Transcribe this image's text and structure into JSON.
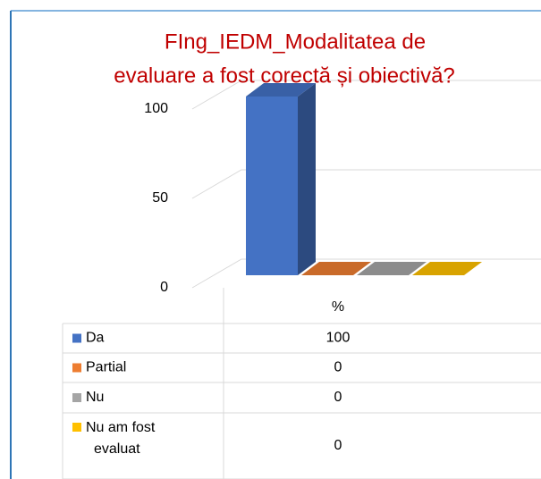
{
  "chart_data": {
    "type": "bar3d",
    "title": [
      "FIng_IEDM_Modalitatea de",
      "evaluare a fost corectă și obiectivă?"
    ],
    "categories": [
      "%"
    ],
    "series": [
      {
        "name": "Da",
        "color": "#4472c4",
        "values": [
          100
        ]
      },
      {
        "name": "Partial",
        "color": "#ed7d31",
        "values": [
          0
        ]
      },
      {
        "name": "Nu",
        "color": "#a5a5a5",
        "values": [
          0
        ]
      },
      {
        "name": "Nu am fost evaluat",
        "color": "#ffc000",
        "values": [
          0
        ]
      }
    ],
    "ylim": [
      0,
      100
    ],
    "yticks": [
      0,
      50,
      100
    ],
    "grid": true,
    "data_table": true
  }
}
